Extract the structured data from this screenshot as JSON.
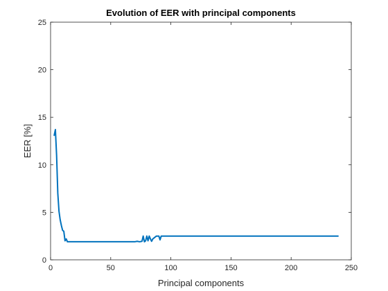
{
  "chart_data": {
    "type": "line",
    "title": "Evolution of EER with principal components",
    "xlabel": "Principal components",
    "ylabel": "EER [%]",
    "xlim": [
      0,
      250
    ],
    "ylim": [
      0,
      25
    ],
    "xticks": [
      0,
      50,
      100,
      150,
      200,
      250
    ],
    "yticks": [
      0,
      5,
      10,
      15,
      20,
      25
    ],
    "xtick_labels": [
      "0",
      "50",
      "100",
      "150",
      "200",
      "250"
    ],
    "ytick_labels": [
      "0",
      "5",
      "10",
      "15",
      "20",
      "25"
    ],
    "grid": false,
    "colors": {
      "line": "#0072bd",
      "axes": "#262626"
    },
    "series": [
      {
        "x": [
          3,
          4,
          5,
          6,
          7,
          8,
          9,
          10,
          11,
          12,
          13,
          14,
          15,
          20,
          30,
          40,
          50,
          60,
          70,
          72,
          74,
          76,
          77,
          78,
          79,
          80,
          81,
          82,
          83,
          84,
          85,
          86,
          88,
          90,
          91,
          92,
          93,
          94,
          95,
          100,
          120,
          150,
          200,
          239
        ],
        "y": [
          13.1,
          13.7,
          11.0,
          7.0,
          5.1,
          4.2,
          3.6,
          3.1,
          3.0,
          2.0,
          2.2,
          1.9,
          1.9,
          1.9,
          1.9,
          1.9,
          1.9,
          1.9,
          1.9,
          1.95,
          1.9,
          1.95,
          2.5,
          1.9,
          2.0,
          2.5,
          2.0,
          2.5,
          2.2,
          1.95,
          2.2,
          2.3,
          2.5,
          2.5,
          2.1,
          2.5,
          2.5,
          2.5,
          2.5,
          2.5,
          2.5,
          2.5,
          2.5,
          2.5
        ]
      }
    ]
  }
}
